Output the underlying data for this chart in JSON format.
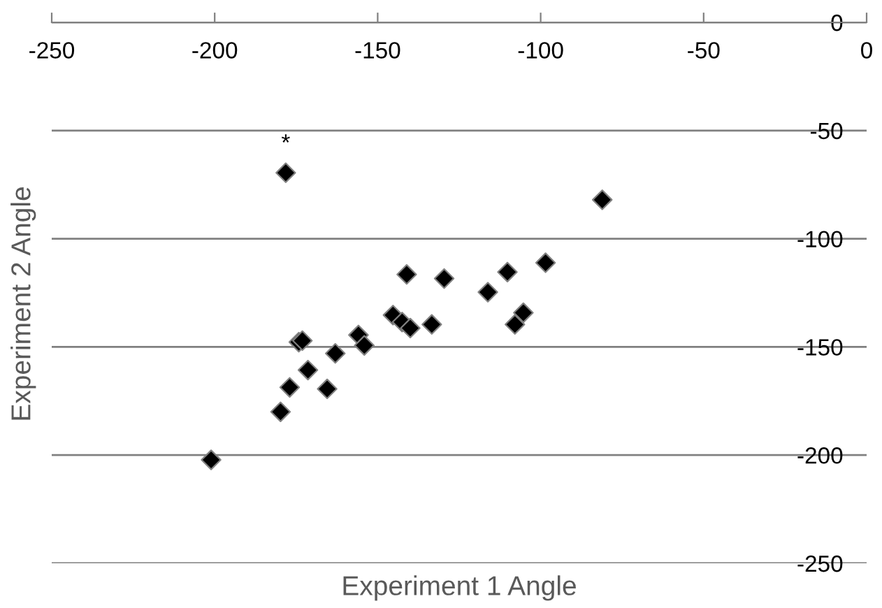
{
  "chart_data": {
    "type": "scatter",
    "xlabel": "Experiment 1 Angle",
    "ylabel": "Experiment 2 Angle",
    "x": [
      -178.2,
      -201.1,
      -179.8,
      -177.0,
      -171.4,
      -174.2,
      -173.1,
      -165.5,
      -163.0,
      -155.9,
      -154.1,
      -145.3,
      -142.5,
      -140.0,
      -141.1,
      -133.4,
      -129.6,
      -116.2,
      -110.2,
      -98.5,
      -105.3,
      -107.9,
      -81.1
    ],
    "series": [
      {
        "color": "#000000",
        "values": [
          -69.5,
          -202.2,
          -180.0,
          -168.7,
          -160.7,
          -147.8,
          -147.1,
          -169.4,
          -153.0,
          -144.5,
          -149.3,
          -135.3,
          -138.5,
          -141.3,
          -116.5,
          -139.6,
          -118.4,
          -124.7,
          -115.4,
          -111.1,
          -134.2,
          -139.6,
          -82.0
        ]
      }
    ],
    "marker": "diamond",
    "xlim": [
      -250,
      0
    ],
    "xticks": [
      -250,
      -200,
      -150,
      -100,
      -50,
      0
    ],
    "ylim": [
      -250,
      0
    ],
    "yticks": [
      -250,
      -200,
      -150,
      -100,
      -50,
      0
    ],
    "grid": "y",
    "annotations": [
      {
        "text": "*",
        "x": -178.2,
        "y": -69.5
      }
    ]
  }
}
